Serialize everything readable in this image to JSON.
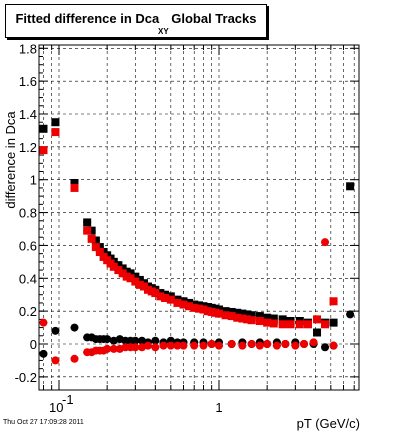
{
  "chart_data": {
    "type": "scatter",
    "title": "Fitted difference in Dca",
    "title_subscript": "XY",
    "title_suffix": "Global Tracks",
    "xlabel": "pT (GeV/c)",
    "ylabel": "difference in Dca",
    "x_scale": "log",
    "xlim": [
      0.075,
      7.5
    ],
    "ylim": [
      -0.28,
      1.82
    ],
    "x_ticks": [
      0.1,
      1
    ],
    "x_tick_labels": [
      "10^-1",
      "1"
    ],
    "y_ticks": [
      -0.2,
      0,
      0.2,
      0.4,
      0.6,
      0.8,
      1,
      1.2,
      1.4,
      1.6,
      1.8
    ],
    "y_tick_labels": [
      "-0.2",
      "0",
      "0.2",
      "0.4",
      "0.6",
      "0.8",
      "1",
      "1.2",
      "1.4",
      "1.6",
      "1.8"
    ],
    "grid": true,
    "series": [
      {
        "marker": "square",
        "color": "#000000",
        "x": [
          0.08,
          0.095,
          0.125,
          0.15,
          0.16,
          0.17,
          0.18,
          0.19,
          0.2,
          0.21,
          0.22,
          0.235,
          0.25,
          0.265,
          0.28,
          0.3,
          0.32,
          0.34,
          0.36,
          0.38,
          0.4,
          0.43,
          0.46,
          0.5,
          0.55,
          0.6,
          0.65,
          0.7,
          0.75,
          0.8,
          0.85,
          0.9,
          0.95,
          1.0,
          1.1,
          1.2,
          1.3,
          1.4,
          1.5,
          1.6,
          1.8,
          2.0,
          2.2,
          2.5,
          2.8,
          3.2,
          3.6,
          4.1,
          4.6,
          5.2,
          6.6
        ],
        "y": [
          1.31,
          1.35,
          0.98,
          0.74,
          0.69,
          0.63,
          0.59,
          0.56,
          0.54,
          0.52,
          0.5,
          0.48,
          0.46,
          0.44,
          0.43,
          0.41,
          0.39,
          0.37,
          0.35,
          0.34,
          0.33,
          0.31,
          0.3,
          0.29,
          0.27,
          0.26,
          0.25,
          0.24,
          0.235,
          0.23,
          0.225,
          0.22,
          0.215,
          0.21,
          0.2,
          0.195,
          0.19,
          0.185,
          0.18,
          0.175,
          0.17,
          0.16,
          0.155,
          0.15,
          0.14,
          0.14,
          0.13,
          0.07,
          0.13,
          0.13,
          0.96
        ]
      },
      {
        "marker": "square",
        "color": "#ee0000",
        "x": [
          0.08,
          0.095,
          0.125,
          0.15,
          0.16,
          0.17,
          0.18,
          0.19,
          0.2,
          0.21,
          0.22,
          0.235,
          0.25,
          0.265,
          0.28,
          0.3,
          0.32,
          0.34,
          0.36,
          0.38,
          0.4,
          0.43,
          0.46,
          0.5,
          0.55,
          0.6,
          0.65,
          0.7,
          0.75,
          0.8,
          0.85,
          0.9,
          0.95,
          1.0,
          1.1,
          1.2,
          1.3,
          1.4,
          1.5,
          1.6,
          1.8,
          2.0,
          2.2,
          2.5,
          2.8,
          3.2,
          3.6,
          4.1,
          4.6,
          5.2
        ],
        "y": [
          1.18,
          1.29,
          0.95,
          0.69,
          0.64,
          0.59,
          0.56,
          0.53,
          0.51,
          0.49,
          0.47,
          0.45,
          0.43,
          0.41,
          0.4,
          0.38,
          0.36,
          0.35,
          0.33,
          0.32,
          0.31,
          0.29,
          0.28,
          0.27,
          0.25,
          0.24,
          0.23,
          0.22,
          0.215,
          0.21,
          0.2,
          0.195,
          0.19,
          0.185,
          0.175,
          0.17,
          0.16,
          0.155,
          0.15,
          0.145,
          0.14,
          0.13,
          0.125,
          0.12,
          0.12,
          0.12,
          0.12,
          0.15,
          0.12,
          0.26
        ]
      },
      {
        "marker": "circle",
        "color": "#000000",
        "x": [
          0.08,
          0.095,
          0.125,
          0.15,
          0.16,
          0.17,
          0.18,
          0.19,
          0.2,
          0.22,
          0.24,
          0.26,
          0.28,
          0.3,
          0.33,
          0.36,
          0.4,
          0.45,
          0.5,
          0.55,
          0.6,
          0.7,
          0.8,
          0.9,
          1.0,
          1.2,
          1.4,
          1.6,
          1.8,
          2.0,
          2.3,
          2.6,
          3.0,
          3.4,
          3.9,
          4.6,
          5.2,
          6.6
        ],
        "y": [
          -0.06,
          0.08,
          0.1,
          0.04,
          0.04,
          0.03,
          0.03,
          0.03,
          0.03,
          0.02,
          0.03,
          0.02,
          0.02,
          0.02,
          0.02,
          0.01,
          0.02,
          0.01,
          0.02,
          0.01,
          0.01,
          0.01,
          0.01,
          0.0,
          0.01,
          0.0,
          0.01,
          0.0,
          0.01,
          0.0,
          0.01,
          0.0,
          0.01,
          0.0,
          0.0,
          -0.02,
          -0.01,
          0.18
        ]
      },
      {
        "marker": "circle",
        "color": "#ee0000",
        "x": [
          0.08,
          0.095,
          0.125,
          0.15,
          0.16,
          0.17,
          0.18,
          0.19,
          0.2,
          0.22,
          0.24,
          0.26,
          0.28,
          0.3,
          0.33,
          0.36,
          0.4,
          0.45,
          0.5,
          0.55,
          0.6,
          0.7,
          0.8,
          0.9,
          1.0,
          1.2,
          1.4,
          1.6,
          1.8,
          2.0,
          2.3,
          2.6,
          3.0,
          3.4,
          3.9,
          4.6,
          5.2
        ],
        "y": [
          0.13,
          -0.1,
          -0.09,
          -0.05,
          -0.05,
          -0.04,
          -0.04,
          -0.04,
          -0.03,
          -0.03,
          -0.03,
          -0.02,
          -0.02,
          -0.02,
          -0.02,
          -0.01,
          -0.02,
          -0.01,
          -0.01,
          -0.01,
          -0.01,
          -0.01,
          -0.01,
          0.0,
          -0.01,
          0.0,
          -0.01,
          0.0,
          -0.01,
          0.0,
          -0.01,
          0.0,
          -0.01,
          0.0,
          0.01,
          0.62,
          -0.01
        ]
      }
    ]
  },
  "timestamp": "Thu Oct 27 17:09:28 2011"
}
